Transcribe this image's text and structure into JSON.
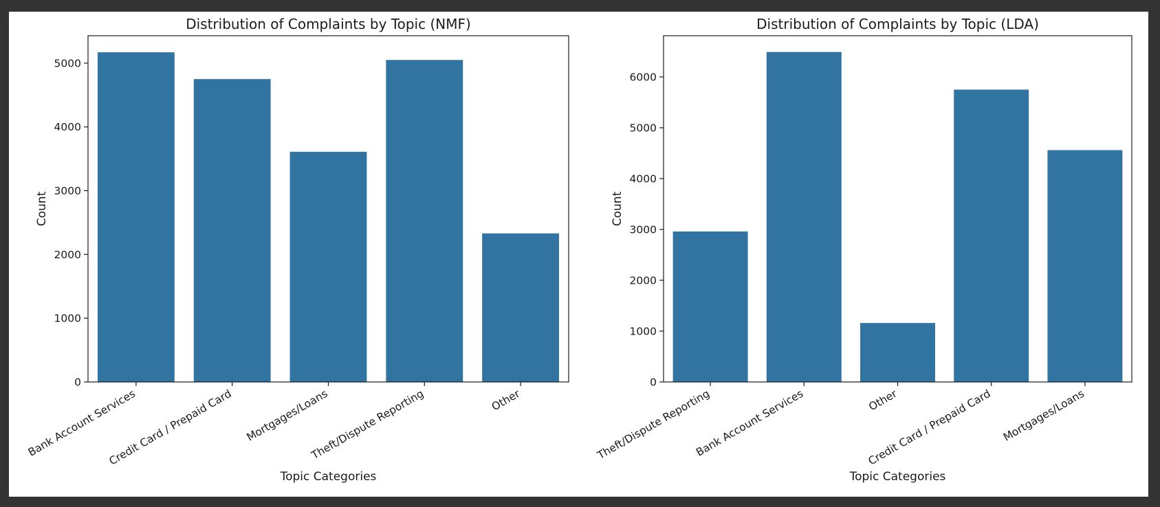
{
  "chart_data": [
    {
      "type": "bar",
      "title": "Distribution of Complaints by Topic (NMF)",
      "xlabel": "Topic Categories",
      "ylabel": "Count",
      "categories": [
        "Bank Account Services",
        "Credit Card / Prepaid Card",
        "Mortgages/Loans",
        "Theft/Dispute Reporting",
        "Other"
      ],
      "values": [
        5170,
        4750,
        3610,
        5050,
        2330
      ],
      "ylim": [
        0,
        5430
      ],
      "yticks": [
        0,
        1000,
        2000,
        3000,
        4000,
        5000
      ],
      "grid": false,
      "bar_color": "#3274a1"
    },
    {
      "type": "bar",
      "title": "Distribution of Complaints by Topic (LDA)",
      "xlabel": "Topic Categories",
      "ylabel": "Count",
      "categories": [
        "Theft/Dispute Reporting",
        "Bank Account Services",
        "Other",
        "Credit Card / Prepaid Card",
        "Mortgages/Loans"
      ],
      "values": [
        2960,
        6490,
        1160,
        5750,
        4560
      ],
      "ylim": [
        0,
        6810
      ],
      "yticks": [
        0,
        1000,
        2000,
        3000,
        4000,
        5000,
        6000
      ],
      "grid": false,
      "bar_color": "#3274a1"
    }
  ]
}
